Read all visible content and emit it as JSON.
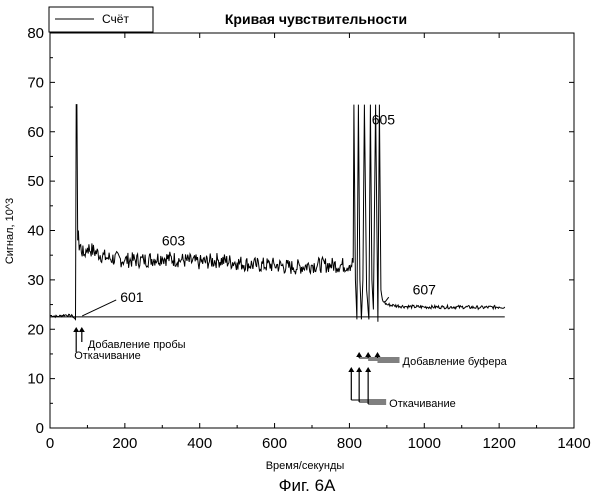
{
  "chart_data": {
    "type": "line",
    "title": "Кривая чувствительности",
    "xlabel": "Время/секунды",
    "ylabel": "Сигнал, 10^3",
    "xlim": [
      0,
      1400
    ],
    "ylim": [
      0,
      80
    ],
    "xticks": [
      "0",
      "200",
      "400",
      "600",
      "800",
      "1000",
      "1200",
      "1400"
    ],
    "yticks": [
      "0",
      "10",
      "20",
      "30",
      "40",
      "50",
      "60",
      "70",
      "80"
    ],
    "legend": {
      "position": "top-left",
      "entries": [
        "Счёт"
      ]
    },
    "grid": false,
    "series": [
      {
        "name": "Счёт",
        "color": "#000000",
        "x": [
          0,
          20,
          40,
          60,
          68,
          70,
          72,
          74,
          76,
          78,
          80,
          90,
          100,
          150,
          200,
          250,
          300,
          350,
          400,
          450,
          500,
          550,
          600,
          650,
          700,
          750,
          800,
          810,
          812,
          816,
          820,
          824,
          828,
          832,
          836,
          840,
          846,
          852,
          856,
          860,
          864,
          870,
          876,
          880,
          884,
          888,
          892,
          900,
          920,
          950,
          1000,
          1050,
          1100,
          1150,
          1200,
          1215
        ],
        "y": [
          22.8,
          22.6,
          22.9,
          22.7,
          22,
          65.5,
          65.5,
          38,
          40,
          36,
          37,
          35,
          36.5,
          34.5,
          34,
          34,
          34.5,
          34,
          33.5,
          34,
          33.5,
          33,
          33,
          32.5,
          33,
          33,
          33,
          33.5,
          65.5,
          30,
          22,
          65.5,
          30,
          22,
          30,
          65.5,
          28,
          22,
          65.5,
          30,
          24,
          65.5,
          21.5,
          65.5,
          28,
          26,
          25.5,
          25,
          24.8,
          24.6,
          24.5,
          24.5,
          24.5,
          24.4,
          24.5,
          24.5
        ]
      }
    ],
    "baseline": {
      "x": [
        0,
        1215
      ],
      "y": [
        22.5,
        22.5
      ]
    },
    "annotations": [
      {
        "label": "601",
        "x": 70,
        "y": 23.5
      },
      {
        "label": "603",
        "x": 330,
        "y": 37
      },
      {
        "label": "605",
        "x": 880,
        "y": 61.5
      },
      {
        "label": "607",
        "x": 1000,
        "y": 27
      }
    ],
    "events": [
      {
        "label": "Добавление пробы",
        "x": [
          85
        ]
      },
      {
        "label": "Откачивание",
        "x": [
          70
        ]
      },
      {
        "label": "Добавление буфера",
        "x": [
          826,
          850,
          875
        ]
      },
      {
        "label": "Откачивание",
        "x": [
          805,
          826,
          850
        ]
      }
    ]
  },
  "caption": "Фиг. 6A"
}
